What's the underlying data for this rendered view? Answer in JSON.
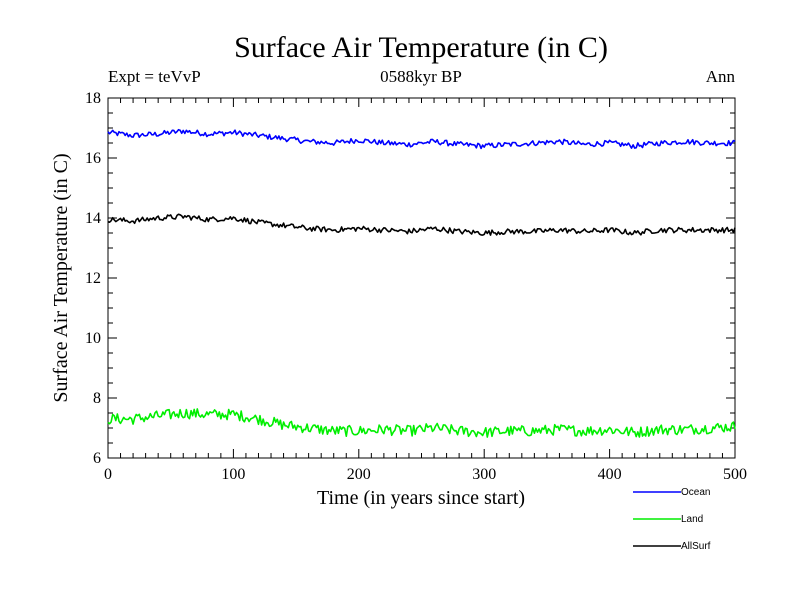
{
  "chart_data": {
    "type": "line",
    "title": "Surface Air Temperature (in C)",
    "subtitle": "0588kyr BP",
    "experiment_label": "Expt = teVvP",
    "season_label": "Ann",
    "xlabel": "Time (in years since start)",
    "ylabel": "Surface Air Temperature (in C)",
    "xlim": [
      0,
      500
    ],
    "ylim": [
      6,
      18
    ],
    "x_ticks": [
      "0",
      "100",
      "200",
      "300",
      "400",
      "500"
    ],
    "y_ticks": [
      "6",
      "8",
      "10",
      "12",
      "14",
      "16",
      "18"
    ],
    "grid": false,
    "legend_position": "bottom-right, below plot",
    "series": [
      {
        "name": "Ocean",
        "color": "#0000ff",
        "x": [
          0,
          20,
          40,
          60,
          80,
          100,
          120,
          140,
          160,
          180,
          200,
          220,
          240,
          260,
          280,
          300,
          320,
          340,
          360,
          380,
          400,
          420,
          440,
          460,
          480,
          500
        ],
        "values": [
          16.85,
          16.75,
          16.8,
          16.9,
          16.8,
          16.85,
          16.75,
          16.65,
          16.55,
          16.5,
          16.6,
          16.5,
          16.45,
          16.55,
          16.45,
          16.4,
          16.45,
          16.5,
          16.55,
          16.45,
          16.5,
          16.4,
          16.5,
          16.55,
          16.5,
          16.5
        ]
      },
      {
        "name": "Land",
        "color": "#00ee00",
        "x": [
          0,
          20,
          40,
          60,
          80,
          100,
          120,
          140,
          160,
          180,
          200,
          220,
          240,
          260,
          280,
          300,
          320,
          340,
          360,
          380,
          400,
          420,
          440,
          460,
          480,
          500
        ],
        "values": [
          7.3,
          7.3,
          7.4,
          7.5,
          7.45,
          7.45,
          7.3,
          7.1,
          7.0,
          6.9,
          6.9,
          6.95,
          6.9,
          7.0,
          6.9,
          6.85,
          6.9,
          6.9,
          6.95,
          6.9,
          6.95,
          6.85,
          6.95,
          6.95,
          7.0,
          7.05
        ]
      },
      {
        "name": "AllSurf",
        "color": "#000000",
        "x": [
          0,
          20,
          40,
          60,
          80,
          100,
          120,
          140,
          160,
          180,
          200,
          220,
          240,
          260,
          280,
          300,
          320,
          340,
          360,
          380,
          400,
          420,
          440,
          460,
          480,
          500
        ],
        "values": [
          13.95,
          13.9,
          14.0,
          14.05,
          13.95,
          14.0,
          13.85,
          13.75,
          13.65,
          13.6,
          13.65,
          13.6,
          13.55,
          13.65,
          13.55,
          13.5,
          13.55,
          13.55,
          13.6,
          13.55,
          13.6,
          13.5,
          13.6,
          13.6,
          13.6,
          13.6
        ]
      }
    ]
  }
}
